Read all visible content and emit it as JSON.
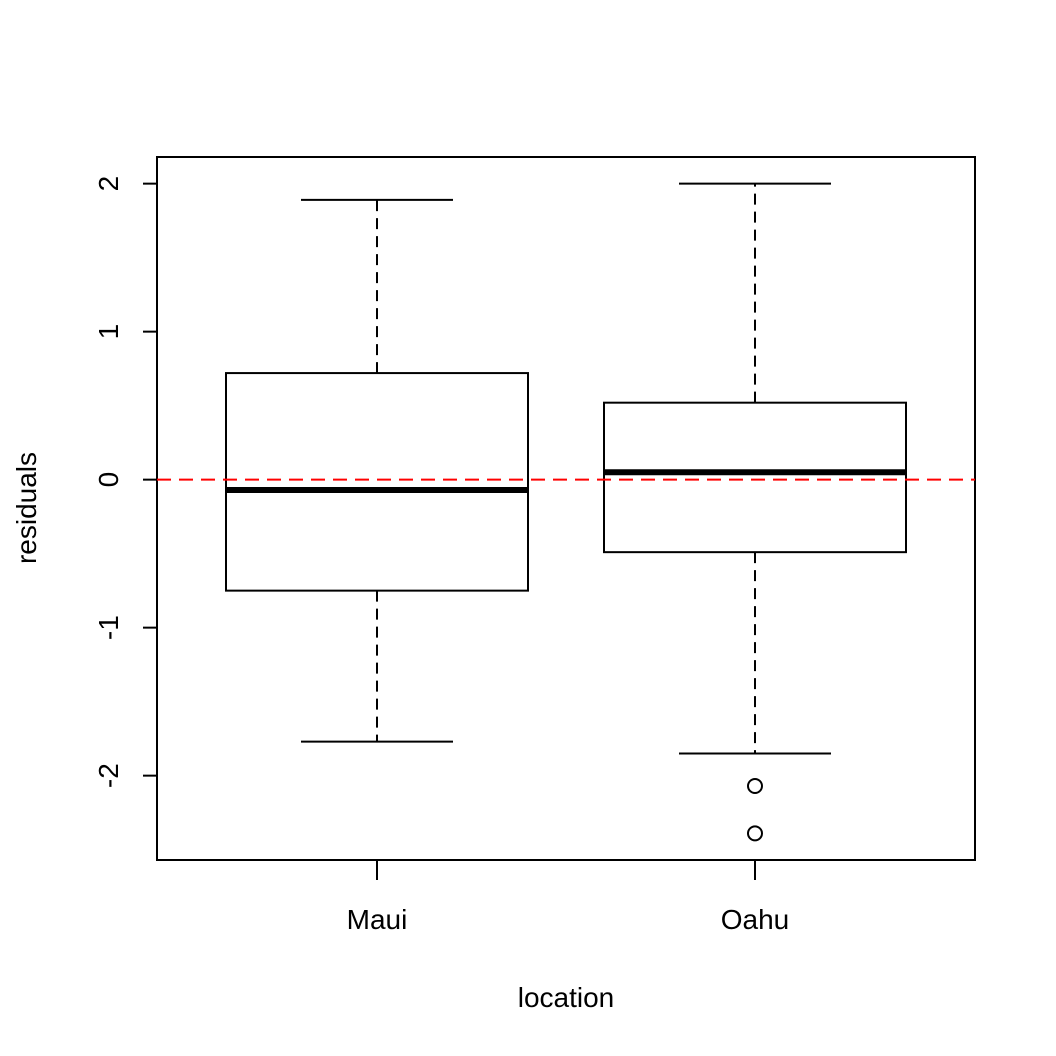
{
  "chart_data": {
    "type": "boxplot",
    "xlabel": "location",
    "ylabel": "residuals",
    "ylim": [
      -2.57,
      2.18
    ],
    "yticks": [
      -2,
      -1,
      0,
      1,
      2
    ],
    "ytick_labels": [
      "-2",
      "-1",
      "0",
      "1",
      "2"
    ],
    "categories": [
      "Maui",
      "Oahu"
    ],
    "boxes": [
      {
        "category": "Maui",
        "whisker_low": -1.77,
        "q1": -0.75,
        "median": -0.07,
        "q3": 0.72,
        "whisker_high": 1.89,
        "outliers": []
      },
      {
        "category": "Oahu",
        "whisker_low": -1.85,
        "q1": -0.49,
        "median": 0.05,
        "q3": 0.52,
        "whisker_high": 2.0,
        "outliers": [
          -2.07,
          -2.39
        ]
      }
    ],
    "reference_line": {
      "y": 0,
      "color": "#ff0000",
      "style": "dashed"
    },
    "grid": false,
    "colors": {
      "box": "#000000",
      "reference": "#ff0000"
    }
  }
}
